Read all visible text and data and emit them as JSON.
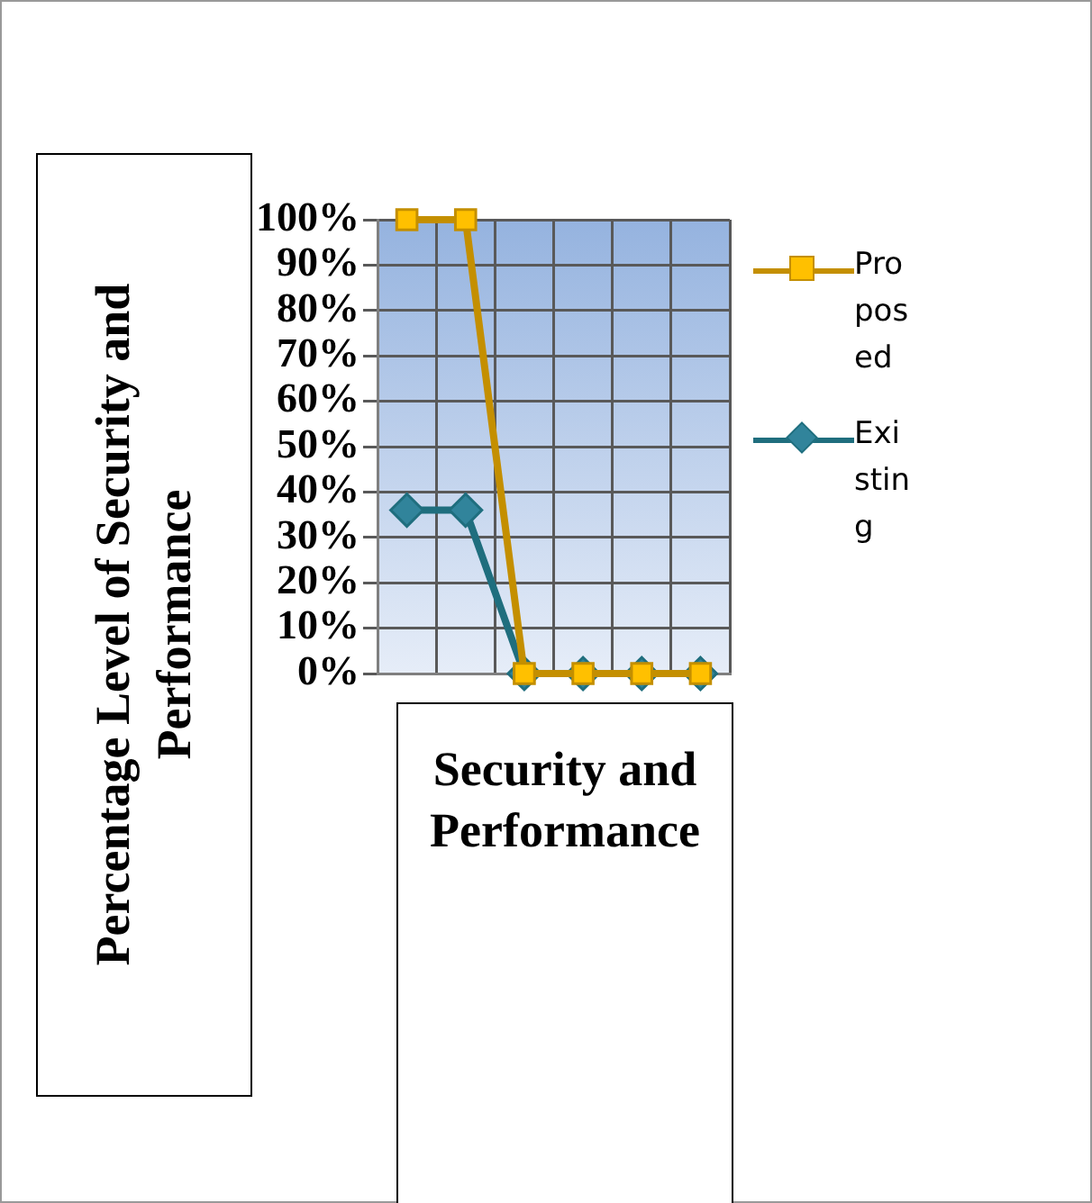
{
  "chart_data": {
    "type": "line",
    "xlabel": "Security and Performance",
    "ylabel": "Percentage Level of Security and Performance",
    "categories": [
      null,
      null,
      null,
      null,
      null,
      null
    ],
    "series": [
      {
        "name": "Proposed",
        "color": "#c48f00",
        "marker": "square",
        "values": [
          100,
          100,
          0,
          0,
          0,
          0
        ]
      },
      {
        "name": "Existing",
        "color": "#1f6e7e",
        "marker": "diamond",
        "values": [
          36,
          36,
          0,
          0,
          0,
          0
        ]
      }
    ],
    "ylim": [
      0,
      100
    ],
    "yticks": [
      {
        "value": 0,
        "label": "0%"
      },
      {
        "value": 10,
        "label": "10%"
      },
      {
        "value": 20,
        "label": "20%"
      },
      {
        "value": 30,
        "label": "30%"
      },
      {
        "value": 40,
        "label": "40%"
      },
      {
        "value": 50,
        "label": "50%"
      },
      {
        "value": 60,
        "label": "60%"
      },
      {
        "value": 70,
        "label": "70%"
      },
      {
        "value": 80,
        "label": "80%"
      },
      {
        "value": 90,
        "label": "90%"
      },
      {
        "value": 100,
        "label": "100%"
      }
    ],
    "grid": true,
    "legend": "right",
    "tick_labels": "y"
  }
}
